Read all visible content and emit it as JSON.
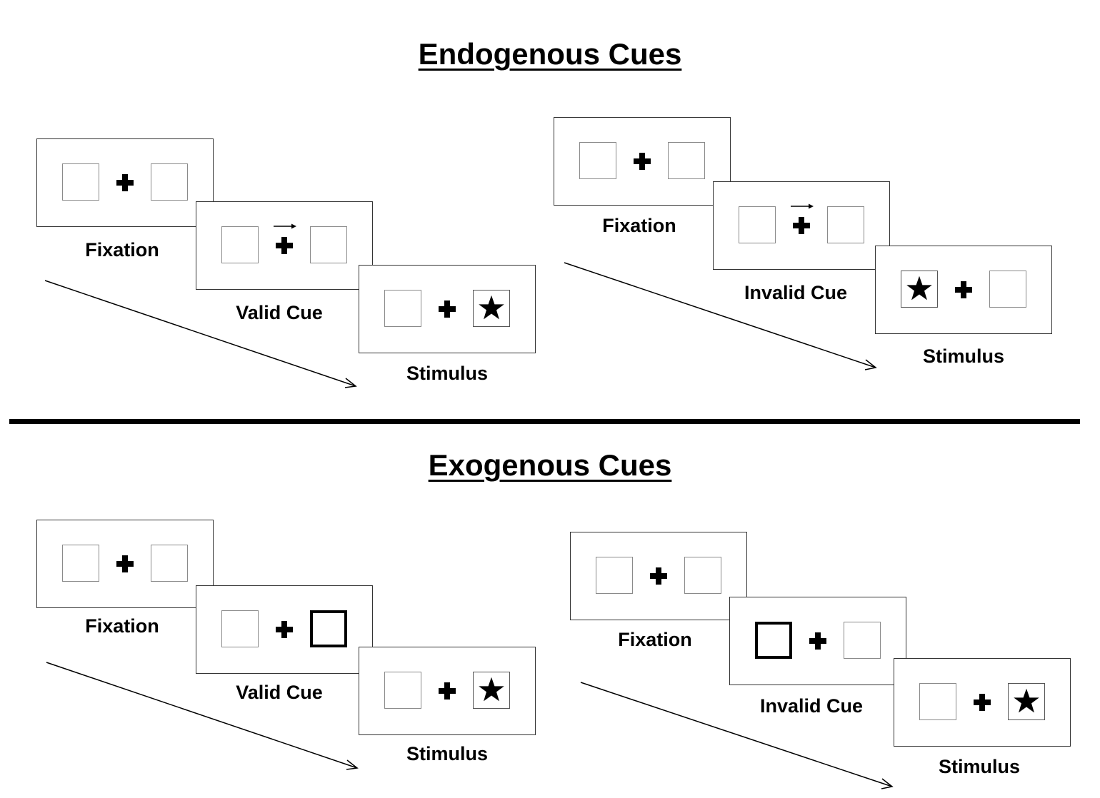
{
  "endogenous": {
    "title": "Endogenous Cues",
    "valid": {
      "fixation": "Fixation",
      "cue": "Valid Cue",
      "stimulus": "Stimulus"
    },
    "invalid": {
      "fixation": "Fixation",
      "cue": "Invalid Cue",
      "stimulus": "Stimulus"
    }
  },
  "exogenous": {
    "title": "Exogenous Cues",
    "valid": {
      "fixation": "Fixation",
      "cue": "Valid Cue",
      "stimulus": "Stimulus"
    },
    "invalid": {
      "fixation": "Fixation",
      "cue": "Invalid Cue",
      "stimulus": "Stimulus"
    }
  },
  "colors": {
    "ink": "#000000",
    "box_border": "#8a8a8a",
    "background": "#ffffff"
  }
}
